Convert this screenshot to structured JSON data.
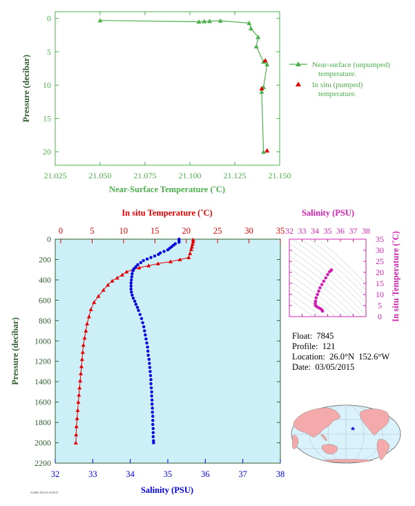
{
  "colors": {
    "green": "#4cb04c",
    "dark_green": "#2f5d2f",
    "red": "#e00000",
    "blue": "#0000e0",
    "magenta": "#d020b0",
    "panel_bg": "#cdeff7",
    "land": "#f4aaaa",
    "ocean": "#d9f2fb"
  },
  "float_info": {
    "float": "Float:  7845",
    "profile": "Profile:  121",
    "location": "Location:  26.0°N  152.6°W",
    "date": "Date:  03/05/2015"
  },
  "footer_code": "AOML/NOAA 030515",
  "chart_data": [
    {
      "id": "near_surface",
      "type": "line",
      "xlabel": "Near-Surface Temperature (˚C)",
      "ylabel": "Pressure (decibar)",
      "xlim": [
        21.025,
        21.15
      ],
      "ylim": [
        22,
        -1
      ],
      "xticks": [
        "21.025",
        "21.050",
        "21.075",
        "21.100",
        "21.125",
        "21.150"
      ],
      "yticks": [
        "0",
        "5",
        "10",
        "15",
        "20"
      ],
      "legend": [
        "Near-surface (unpumped) temperature.",
        "In situ (pumped) temperature."
      ],
      "series": [
        {
          "name": "Near-surface (unpumped) temperature.",
          "points": [
            [
              21.05,
              0.3
            ],
            [
              21.105,
              0.5
            ],
            [
              21.108,
              0.45
            ],
            [
              21.111,
              0.4
            ],
            [
              21.117,
              0.35
            ],
            [
              21.133,
              0.7
            ],
            [
              21.134,
              1.5
            ],
            [
              21.138,
              2.8
            ],
            [
              21.137,
              4.2
            ],
            [
              21.141,
              6.5
            ],
            [
              21.143,
              6.9
            ],
            [
              21.141,
              10.3
            ],
            [
              21.14,
              11.0
            ],
            [
              21.141,
              20.0
            ]
          ]
        },
        {
          "name": "In situ (pumped) temperature.",
          "points": [
            [
              21.142,
              6.3
            ],
            [
              21.14,
              10.5
            ],
            [
              21.143,
              19.8
            ]
          ]
        }
      ]
    },
    {
      "id": "profile",
      "type": "scatter",
      "xlabel": "Salinity (PSU)",
      "x2label": "In situ Temperature (˚C)",
      "ylabel": "Pressure (decibar)",
      "salinity_lim": [
        32,
        38
      ],
      "temperature_lim": [
        0,
        35
      ],
      "ylim": [
        0,
        2200
      ],
      "salinity_ticks": [
        "32",
        "33",
        "34",
        "35",
        "36",
        "37",
        "38"
      ],
      "temperature_ticks": [
        "0",
        "5",
        "10",
        "15",
        "20",
        "25",
        "30",
        "35"
      ],
      "yticks": [
        "0",
        "200",
        "400",
        "600",
        "800",
        "1000",
        "1200",
        "1400",
        "1600",
        "1800",
        "2000",
        "2200"
      ],
      "temperature_series": [
        [
          21.1,
          5
        ],
        [
          21.1,
          25
        ],
        [
          21.0,
          50
        ],
        [
          20.9,
          75
        ],
        [
          20.8,
          100
        ],
        [
          20.6,
          140
        ],
        [
          20.4,
          180
        ],
        [
          19.0,
          200
        ],
        [
          17.5,
          220
        ],
        [
          15.5,
          240
        ],
        [
          14.0,
          260
        ],
        [
          12.5,
          280
        ],
        [
          11.5,
          300
        ],
        [
          10.5,
          320
        ],
        [
          9.8,
          350
        ],
        [
          9.0,
          380
        ],
        [
          8.2,
          410
        ],
        [
          7.5,
          450
        ],
        [
          6.8,
          500
        ],
        [
          6.0,
          560
        ],
        [
          5.3,
          620
        ],
        [
          4.8,
          690
        ],
        [
          4.5,
          760
        ],
        [
          4.2,
          830
        ],
        [
          4.0,
          900
        ],
        [
          3.8,
          970
        ],
        [
          3.6,
          1040
        ],
        [
          3.5,
          1110
        ],
        [
          3.4,
          1180
        ],
        [
          3.3,
          1250
        ],
        [
          3.2,
          1320
        ],
        [
          3.1,
          1390
        ],
        [
          3.0,
          1460
        ],
        [
          2.9,
          1530
        ],
        [
          2.8,
          1600
        ],
        [
          2.7,
          1680
        ],
        [
          2.6,
          1760
        ],
        [
          2.5,
          1840
        ],
        [
          2.45,
          1920
        ],
        [
          2.4,
          2000
        ]
      ],
      "salinity_series": [
        [
          35.3,
          0
        ],
        [
          35.3,
          15
        ],
        [
          35.3,
          30
        ],
        [
          35.2,
          45
        ],
        [
          35.15,
          60
        ],
        [
          35.1,
          75
        ],
        [
          35.05,
          90
        ],
        [
          35.0,
          105
        ],
        [
          34.9,
          120
        ],
        [
          34.8,
          135
        ],
        [
          34.75,
          150
        ],
        [
          34.65,
          165
        ],
        [
          34.55,
          180
        ],
        [
          34.45,
          195
        ],
        [
          34.35,
          210
        ],
        [
          34.28,
          230
        ],
        [
          34.2,
          250
        ],
        [
          34.15,
          270
        ],
        [
          34.1,
          290
        ],
        [
          34.07,
          310
        ],
        [
          34.05,
          340
        ],
        [
          34.04,
          370
        ],
        [
          34.03,
          400
        ],
        [
          34.02,
          430
        ],
        [
          34.02,
          460
        ],
        [
          34.02,
          490
        ],
        [
          34.03,
          520
        ],
        [
          34.05,
          550
        ],
        [
          34.08,
          580
        ],
        [
          34.12,
          610
        ],
        [
          34.15,
          640
        ],
        [
          34.19,
          670
        ],
        [
          34.22,
          700
        ],
        [
          34.26,
          740
        ],
        [
          34.3,
          780
        ],
        [
          34.33,
          820
        ],
        [
          34.36,
          860
        ],
        [
          34.38,
          900
        ],
        [
          34.4,
          940
        ],
        [
          34.42,
          980
        ],
        [
          34.44,
          1020
        ],
        [
          34.46,
          1060
        ],
        [
          34.47,
          1100
        ],
        [
          34.48,
          1140
        ],
        [
          34.5,
          1180
        ],
        [
          34.51,
          1220
        ],
        [
          34.52,
          1260
        ],
        [
          34.53,
          1300
        ],
        [
          34.54,
          1340
        ],
        [
          34.55,
          1380
        ],
        [
          34.55,
          1420
        ],
        [
          34.56,
          1460
        ],
        [
          34.57,
          1500
        ],
        [
          34.57,
          1540
        ],
        [
          34.58,
          1580
        ],
        [
          34.58,
          1620
        ],
        [
          34.59,
          1660
        ],
        [
          34.59,
          1700
        ],
        [
          34.6,
          1740
        ],
        [
          34.6,
          1780
        ],
        [
          34.6,
          1820
        ],
        [
          34.61,
          1860
        ],
        [
          34.61,
          1900
        ],
        [
          34.61,
          1940
        ],
        [
          34.62,
          1980
        ],
        [
          34.62,
          2000
        ]
      ]
    },
    {
      "id": "ts_diagram",
      "type": "scatter",
      "title": "Salinity (PSU)",
      "ylabel": "In situ Temperature (˚C)",
      "xlim": [
        32,
        38
      ],
      "ylim": [
        0,
        35
      ],
      "xticks": [
        "32",
        "33",
        "34",
        "35",
        "36",
        "37",
        "38"
      ],
      "yticks": [
        "0",
        "5",
        "10",
        "15",
        "20",
        "25",
        "30",
        "35"
      ],
      "points": [
        [
          35.3,
          21.1
        ],
        [
          35.25,
          20.8
        ],
        [
          35.15,
          20.3
        ],
        [
          35.0,
          19.0
        ],
        [
          34.85,
          17.5
        ],
        [
          34.7,
          16.0
        ],
        [
          34.55,
          14.5
        ],
        [
          34.4,
          13.0
        ],
        [
          34.3,
          11.5
        ],
        [
          34.2,
          10.0
        ],
        [
          34.1,
          8.5
        ],
        [
          34.05,
          7.0
        ],
        [
          34.03,
          6.0
        ],
        [
          34.05,
          5.0
        ],
        [
          34.15,
          4.5
        ],
        [
          34.3,
          4.0
        ],
        [
          34.45,
          3.5
        ],
        [
          34.55,
          3.0
        ],
        [
          34.6,
          2.5
        ]
      ]
    }
  ]
}
